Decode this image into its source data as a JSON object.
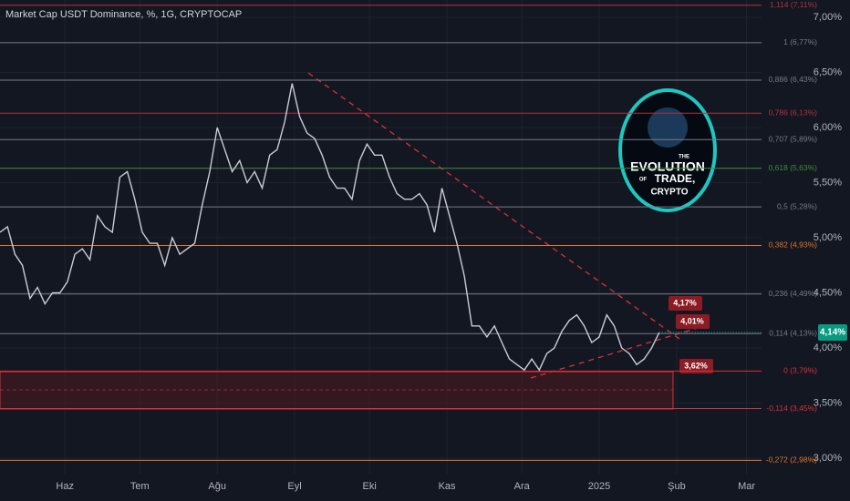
{
  "chart_data": {
    "type": "line",
    "title": "Market Cap USDT Dominance, %, 1G, CRYPTOCAP",
    "x": [
      0,
      3,
      6,
      9,
      12,
      15,
      18,
      21,
      24,
      27,
      30,
      33,
      36,
      39,
      42,
      45,
      48,
      51,
      54,
      57,
      60,
      63,
      66,
      69,
      72,
      75,
      78,
      81,
      84,
      87,
      90,
      93,
      96,
      99,
      102,
      105,
      108,
      111,
      114,
      117,
      120,
      123,
      126,
      129,
      132,
      135,
      138,
      141,
      144,
      147,
      150,
      153,
      156,
      159,
      162,
      165,
      168,
      171,
      174,
      177,
      180,
      183,
      186,
      189,
      192,
      195,
      198,
      201,
      204,
      207,
      210,
      213,
      216,
      219,
      222,
      225,
      228,
      231,
      234,
      237,
      240,
      243,
      246,
      249,
      252,
      255,
      258,
      261,
      264
    ],
    "values": [
      5.05,
      5.1,
      4.85,
      4.75,
      4.45,
      4.55,
      4.4,
      4.5,
      4.5,
      4.6,
      4.85,
      4.9,
      4.8,
      5.2,
      5.1,
      5.05,
      5.55,
      5.6,
      5.35,
      5.05,
      4.95,
      4.95,
      4.75,
      5.0,
      4.85,
      4.9,
      4.95,
      5.3,
      5.6,
      6.0,
      5.8,
      5.6,
      5.7,
      5.5,
      5.6,
      5.45,
      5.75,
      5.8,
      6.05,
      6.4,
      6.1,
      5.95,
      5.9,
      5.75,
      5.55,
      5.45,
      5.45,
      5.35,
      5.7,
      5.85,
      5.75,
      5.75,
      5.55,
      5.4,
      5.35,
      5.35,
      5.4,
      5.3,
      5.05,
      5.45,
      5.2,
      4.95,
      4.65,
      4.2,
      4.2,
      4.1,
      4.2,
      4.05,
      3.9,
      3.85,
      3.8,
      3.9,
      3.8,
      3.95,
      4.0,
      4.15,
      4.25,
      4.3,
      4.2,
      4.05,
      4.1,
      4.3,
      4.2,
      4.0,
      3.95,
      3.85,
      3.9,
      4.0,
      4.14
    ],
    "color": "#c9ccd4",
    "xlim": [
      0,
      305
    ],
    "xticks": [
      {
        "value": 26,
        "label": "Haz"
      },
      {
        "value": 56,
        "label": "Tem"
      },
      {
        "value": 87,
        "label": "Ağu"
      },
      {
        "value": 118,
        "label": "Eyl"
      },
      {
        "value": 148,
        "label": "Eki"
      },
      {
        "value": 179,
        "label": "Kas"
      },
      {
        "value": 209,
        "label": "Ara"
      },
      {
        "value": 240,
        "label": "2025"
      },
      {
        "value": 271,
        "label": "Şub"
      },
      {
        "value": 299,
        "label": "Mar"
      }
    ],
    "ylim": [
      2.86,
      7.16
    ],
    "yticks": [
      {
        "value": 7,
        "label": "7,00%"
      },
      {
        "value": 6.5,
        "label": "6,50%"
      },
      {
        "value": 6,
        "label": "6,00%"
      },
      {
        "value": 5.5,
        "label": "5,50%"
      },
      {
        "value": 5,
        "label": "5,00%"
      },
      {
        "value": 4.5,
        "label": "4,50%"
      },
      {
        "value": 4,
        "label": "4,00%"
      },
      {
        "value": 3.5,
        "label": "3,50%"
      },
      {
        "value": 3,
        "label": "3,00%"
      }
    ],
    "fib_levels": [
      {
        "value": 7.11,
        "label": "1,114 (7,11%)",
        "color": "#b2323a"
      },
      {
        "value": 6.77,
        "label": "1 (6,77%)",
        "color": "#787b86"
      },
      {
        "value": 6.43,
        "label": "0,886 (6,43%)",
        "color": "#787b86"
      },
      {
        "value": 6.13,
        "label": "0,786 (6,13%)",
        "color": "#b2323a"
      },
      {
        "value": 5.89,
        "label": "0,707 (5,89%)",
        "color": "#787b86"
      },
      {
        "value": 5.63,
        "label": "0,618 (5,63%)",
        "color": "#3d8f3a"
      },
      {
        "value": 5.28,
        "label": "0,5 (5,28%)",
        "color": "#787b86"
      },
      {
        "value": 4.93,
        "label": "0,382 (4,93%)",
        "color": "#e0762c"
      },
      {
        "value": 4.49,
        "label": "0,236 (4,49%)",
        "color": "#787b86"
      },
      {
        "value": 4.13,
        "label": "0,114 (4,13%)",
        "color": "#787b86"
      },
      {
        "value": 3.79,
        "label": "0 (3,79%)",
        "color": "#d8313a"
      },
      {
        "value": 3.45,
        "label": "-0,114 (3,45%)",
        "color": "#d8313a"
      },
      {
        "value": 2.98,
        "label": "-0,272 (2,98%)",
        "color": "#e0762c"
      }
    ],
    "last_price": {
      "value": 4.14,
      "label": "4,14%"
    },
    "annotations": [
      "4,17%",
      "4,01%",
      "3,62%"
    ],
    "logo": [
      "THE",
      "EVOLUTION",
      "OF",
      "TRADE,",
      "CRYPTO"
    ]
  }
}
